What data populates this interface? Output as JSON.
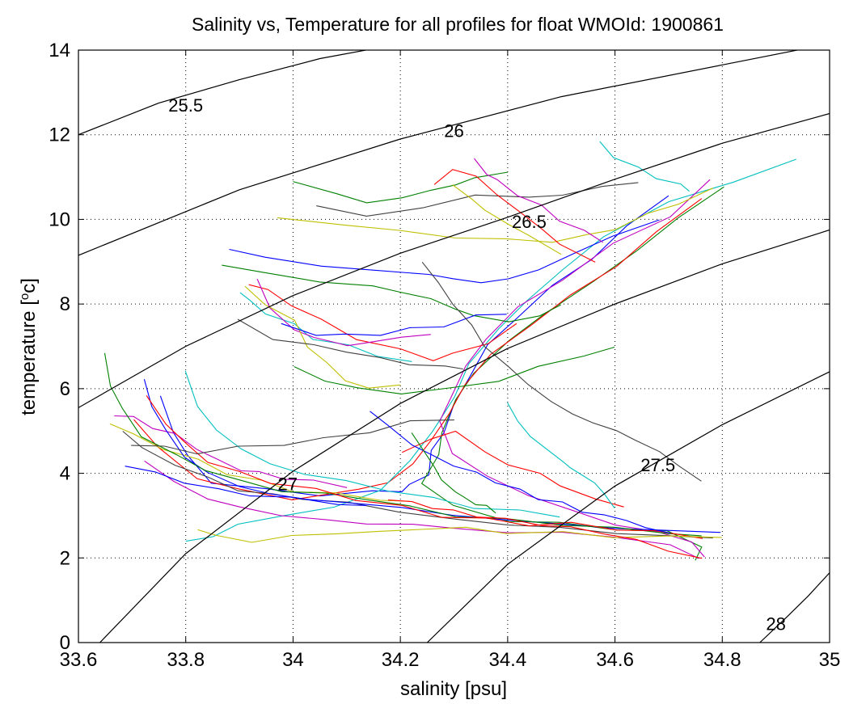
{
  "chart_data": {
    "type": "line",
    "title": "Salinity vs, Temperature for all profiles for float WMOId: 1900861",
    "xlabel": "salinity [psu]",
    "ylabel": "temperature [",
    "ylabel_sup": "o",
    "ylabel_end": "c]",
    "xlim": [
      33.6,
      35.0
    ],
    "ylim": [
      0,
      14
    ],
    "x_ticks": [
      33.6,
      33.8,
      34.0,
      34.2,
      34.4,
      34.6,
      34.8,
      35.0
    ],
    "x_tick_labels": [
      "33.6",
      "33.8",
      "34",
      "34.2",
      "34.4",
      "34.6",
      "34.8",
      "35"
    ],
    "y_ticks": [
      0,
      2,
      4,
      6,
      8,
      10,
      12,
      14
    ],
    "y_tick_labels": [
      "0",
      "2",
      "4",
      "6",
      "8",
      "10",
      "12",
      "14"
    ],
    "grid": "dotted",
    "series_colors": [
      "#0000ff",
      "#008000",
      "#ff0000",
      "#00bfbf",
      "#bf00bf",
      "#bfbf00",
      "#404040"
    ],
    "isopycnals": [
      {
        "label": "25.5",
        "x": [
          33.6,
          33.75,
          33.9,
          34.05,
          34.2
        ],
        "y": [
          12.0,
          12.75,
          13.3,
          13.8,
          14.15
        ],
        "label_x": 33.8,
        "label_y": 12.7
      },
      {
        "label": "26",
        "x": [
          33.6,
          33.9,
          34.2,
          34.5,
          34.8,
          35.0
        ],
        "y": [
          9.15,
          10.7,
          11.9,
          12.9,
          13.65,
          14.15
        ],
        "label_x": 34.3,
        "label_y": 12.1
      },
      {
        "label": "26.5",
        "x": [
          33.6,
          33.8,
          34.0,
          34.2,
          34.4,
          34.6,
          34.8,
          35.0
        ],
        "y": [
          5.55,
          7.0,
          8.2,
          9.2,
          10.05,
          10.95,
          11.8,
          12.5
        ],
        "label_x": 34.44,
        "label_y": 9.95
      },
      {
        "label": "27",
        "x": [
          33.64,
          33.8,
          34.0,
          34.2,
          34.4,
          34.6,
          34.8,
          35.0
        ],
        "y": [
          0,
          2.1,
          4.05,
          5.65,
          6.95,
          8.0,
          8.95,
          9.75
        ],
        "label_x": 33.99,
        "label_y": 3.75
      },
      {
        "label": "27.5",
        "x": [
          34.25,
          34.4,
          34.6,
          34.8,
          35.0
        ],
        "y": [
          0,
          1.85,
          3.7,
          5.15,
          6.4
        ],
        "label_x": 34.68,
        "label_y": 4.2
      },
      {
        "label": "28",
        "x": [
          34.87,
          34.92,
          34.96,
          35.0
        ],
        "y": [
          0,
          0.6,
          1.1,
          1.65
        ],
        "label_x": 34.9,
        "label_y": 0.45
      }
    ],
    "profiles": [
      {
        "s": [
          34.7,
          34.62,
          34.56,
          34.48,
          34.42,
          34.36,
          34.33,
          34.3,
          34.28,
          34.26,
          34.25,
          34.22,
          34.2,
          34.15,
          34.05,
          33.95,
          33.85,
          33.8,
          33.78,
          33.75
        ],
        "t": [
          10.6,
          9.8,
          9.1,
          8.4,
          7.7,
          7.0,
          6.3,
          5.6,
          5.0,
          4.5,
          4.0,
          3.7,
          3.6,
          3.55,
          3.5,
          3.6,
          3.8,
          4.4,
          5.0,
          5.8
        ]
      },
      {
        "s": [
          34.8,
          34.72,
          34.64,
          34.56,
          34.47,
          34.4,
          34.34,
          34.3,
          34.28,
          34.27,
          34.24,
          34.3,
          34.4,
          34.5,
          34.6,
          34.7,
          34.76,
          34.75
        ],
        "t": [
          10.8,
          10.0,
          9.3,
          8.5,
          7.8,
          7.1,
          6.4,
          5.7,
          5.0,
          4.4,
          3.8,
          3.2,
          2.9,
          2.8,
          2.7,
          2.6,
          2.3,
          1.9
        ]
      },
      {
        "s": [
          34.76,
          34.68,
          34.6,
          34.52,
          34.44,
          34.37,
          34.32,
          34.29,
          34.26,
          34.22,
          34.18,
          34.12,
          34.0,
          33.9,
          33.82,
          33.75,
          33.7
        ],
        "t": [
          10.5,
          9.7,
          8.9,
          8.2,
          7.5,
          6.8,
          6.1,
          5.4,
          4.8,
          4.2,
          3.8,
          3.6,
          3.4,
          3.6,
          3.9,
          4.6,
          5.3
        ]
      },
      {
        "s": [
          34.94,
          34.82,
          34.7,
          34.58,
          34.5,
          34.44,
          34.38,
          34.33,
          34.3,
          34.26,
          34.22,
          34.16,
          34.08,
          33.98,
          33.9,
          33.85,
          33.8
        ],
        "t": [
          11.4,
          10.9,
          10.4,
          9.6,
          8.8,
          8.1,
          7.4,
          6.6,
          5.8,
          5.0,
          4.3,
          3.6,
          3.2,
          3.0,
          2.8,
          2.5,
          2.4
        ]
      },
      {
        "s": [
          34.78,
          34.7,
          34.6,
          34.5,
          34.42,
          34.36,
          34.32,
          34.3,
          34.27,
          34.3,
          34.36,
          34.44,
          34.52,
          34.6,
          34.68,
          34.74,
          34.77
        ],
        "t": [
          10.9,
          10.1,
          9.4,
          8.6,
          7.9,
          7.2,
          6.5,
          5.9,
          5.2,
          4.5,
          3.9,
          3.5,
          3.1,
          2.8,
          2.6,
          2.4,
          2.0
        ]
      },
      {
        "s": [
          33.97,
          34.1,
          34.2,
          34.3,
          34.4,
          34.48,
          34.55,
          34.6,
          34.66,
          34.72,
          34.78
        ],
        "t": [
          10.0,
          9.9,
          9.7,
          9.6,
          9.5,
          9.5,
          9.6,
          9.8,
          10.1,
          10.4,
          10.7
        ]
      },
      {
        "s": [
          34.04,
          34.14,
          34.24,
          34.34,
          34.44,
          34.5,
          34.58,
          34.64
        ],
        "t": [
          10.3,
          10.1,
          10.25,
          10.6,
          10.5,
          10.6,
          10.75,
          10.9
        ]
      },
      {
        "s": [
          33.88,
          33.95,
          34.05,
          34.15,
          34.25,
          34.3,
          34.35,
          34.4,
          34.46,
          34.52,
          34.6,
          34.68
        ],
        "t": [
          9.3,
          9.1,
          8.9,
          8.8,
          8.7,
          8.6,
          8.5,
          8.6,
          8.8,
          9.2,
          9.6,
          10.0
        ]
      },
      {
        "s": [
          33.87,
          33.95,
          34.05,
          34.15,
          34.2,
          34.26,
          34.3,
          34.34,
          34.4,
          34.46,
          34.5
        ],
        "t": [
          8.95,
          8.7,
          8.55,
          8.4,
          8.3,
          8.1,
          7.9,
          7.7,
          7.6,
          7.7,
          8.0
        ]
      },
      {
        "s": [
          33.92,
          33.95,
          34.0,
          34.05,
          34.12,
          34.2,
          34.26,
          34.3,
          34.36,
          34.42
        ],
        "t": [
          8.5,
          8.3,
          8.0,
          7.6,
          7.2,
          6.9,
          6.7,
          6.8,
          7.1,
          7.5
        ]
      },
      {
        "s": [
          33.9,
          33.92,
          33.95,
          34.0,
          34.04,
          34.1,
          34.16,
          34.22
        ],
        "t": [
          8.3,
          8.05,
          7.8,
          7.5,
          7.2,
          7.0,
          6.8,
          6.6
        ]
      },
      {
        "s": [
          33.93,
          33.96,
          34.0,
          34.04,
          34.08,
          34.1,
          34.14,
          34.2,
          34.26
        ],
        "t": [
          8.6,
          7.9,
          7.4,
          7.2,
          7.1,
          7.0,
          7.1,
          7.2,
          7.3
        ]
      },
      {
        "s": [
          33.91,
          33.95,
          34.0,
          34.03,
          34.06,
          34.1,
          34.14,
          34.2
        ],
        "t": [
          8.4,
          8.0,
          7.6,
          7.0,
          6.6,
          6.2,
          6.0,
          6.1
        ]
      },
      {
        "s": [
          33.9,
          33.96,
          34.04,
          34.1,
          34.16,
          34.22,
          34.28,
          34.32
        ],
        "t": [
          7.6,
          7.2,
          7.0,
          6.9,
          6.7,
          6.6,
          6.5,
          6.5
        ]
      },
      {
        "s": [
          33.98,
          34.04,
          34.1,
          34.16,
          34.22,
          34.28,
          34.34,
          34.4
        ],
        "t": [
          7.5,
          7.3,
          7.25,
          7.3,
          7.4,
          7.5,
          7.7,
          7.8
        ]
      },
      {
        "s": [
          34.0,
          34.06,
          34.12,
          34.2,
          34.3,
          34.38,
          34.46,
          34.54,
          34.6
        ],
        "t": [
          6.5,
          6.2,
          6.0,
          5.9,
          6.0,
          6.2,
          6.5,
          6.8,
          6.95
        ]
      },
      {
        "s": [
          34.2,
          34.26,
          34.3,
          34.36,
          34.4,
          34.46,
          34.5,
          34.56,
          34.62
        ],
        "t": [
          4.5,
          4.8,
          5.0,
          4.5,
          4.2,
          4.0,
          3.7,
          3.4,
          3.2
        ]
      },
      {
        "s": [
          34.4,
          34.42,
          34.44,
          34.48,
          34.5,
          34.52,
          34.56,
          34.58,
          34.6
        ],
        "t": [
          5.7,
          5.2,
          4.9,
          4.5,
          4.3,
          4.1,
          3.8,
          3.5,
          3.2
        ]
      },
      {
        "s": [
          33.67,
          33.7,
          33.74,
          33.78,
          33.82,
          33.86,
          33.9,
          33.94,
          33.98,
          34.04,
          34.1
        ],
        "t": [
          5.4,
          5.3,
          5.1,
          4.9,
          4.6,
          4.3,
          4.1,
          4.0,
          3.9,
          3.8,
          3.7
        ]
      },
      {
        "s": [
          33.66,
          33.7,
          33.76,
          33.82,
          33.88,
          33.94,
          34.0,
          34.08,
          34.16,
          34.22
        ],
        "t": [
          5.2,
          4.9,
          4.6,
          4.3,
          4.0,
          3.8,
          3.6,
          3.5,
          3.4,
          3.3
        ]
      },
      {
        "s": [
          33.68,
          33.72,
          33.78,
          33.84,
          33.9,
          33.96,
          34.02,
          34.1,
          34.2,
          34.3,
          34.4,
          34.5,
          34.6,
          34.7,
          34.78
        ],
        "t": [
          5.0,
          4.6,
          4.2,
          3.9,
          3.6,
          3.5,
          3.4,
          3.3,
          3.1,
          2.9,
          2.8,
          2.7,
          2.6,
          2.5,
          2.5
        ]
      },
      {
        "s": [
          33.72,
          33.74,
          33.76,
          33.8,
          33.84,
          33.9,
          33.96,
          34.02,
          34.1,
          34.2,
          34.3,
          34.4,
          34.5,
          34.6,
          34.7,
          34.8
        ],
        "t": [
          6.2,
          5.6,
          5.0,
          4.4,
          4.0,
          3.7,
          3.5,
          3.4,
          3.3,
          3.2,
          3.0,
          2.9,
          2.8,
          2.7,
          2.65,
          2.6
        ]
      },
      {
        "s": [
          33.65,
          33.66,
          33.68,
          33.72,
          33.78,
          33.84,
          33.9,
          33.98,
          34.06,
          34.14,
          34.22,
          34.3,
          34.4,
          34.5,
          34.6,
          34.7,
          34.76
        ],
        "t": [
          6.8,
          6.1,
          5.5,
          4.9,
          4.4,
          4.1,
          3.8,
          3.6,
          3.5,
          3.4,
          3.2,
          3.0,
          2.9,
          2.8,
          2.7,
          2.6,
          2.5
        ]
      },
      {
        "s": [
          33.73,
          33.76,
          33.8,
          33.84,
          33.9,
          33.96,
          34.04,
          34.12,
          34.2,
          34.28,
          34.36,
          34.44,
          34.52,
          34.6,
          34.68,
          34.76
        ],
        "t": [
          5.8,
          5.2,
          4.7,
          4.3,
          4.0,
          3.8,
          3.6,
          3.4,
          3.2,
          3.0,
          2.9,
          2.8,
          2.8,
          2.7,
          2.6,
          2.5
        ]
      },
      {
        "s": [
          33.8,
          33.82,
          33.86,
          33.9,
          33.96,
          34.02,
          34.1,
          34.18,
          34.26,
          34.34,
          34.42,
          34.5
        ],
        "t": [
          6.4,
          5.6,
          5.0,
          4.6,
          4.2,
          4.0,
          3.8,
          3.6,
          3.4,
          3.2,
          3.1,
          3.0
        ]
      },
      {
        "s": [
          33.72,
          33.78,
          33.84,
          33.9,
          33.98,
          34.06,
          34.14,
          34.22,
          34.3,
          34.4,
          34.5,
          34.6,
          34.7,
          34.76
        ],
        "t": [
          4.3,
          3.8,
          3.4,
          3.2,
          3.0,
          2.9,
          2.8,
          2.8,
          2.7,
          2.6,
          2.6,
          2.5,
          2.3,
          2.0
        ]
      },
      {
        "s": [
          33.82,
          33.86,
          33.92,
          34.0,
          34.08,
          34.16,
          34.24,
          34.32,
          34.4,
          34.5,
          34.6,
          34.7,
          34.8
        ],
        "t": [
          2.7,
          2.5,
          2.4,
          2.5,
          2.6,
          2.6,
          2.7,
          2.7,
          2.6,
          2.6,
          2.5,
          2.5,
          2.5
        ]
      },
      {
        "s": [
          33.7,
          33.76,
          33.82,
          33.9,
          33.98,
          34.06,
          34.14,
          34.22,
          34.3
        ],
        "t": [
          4.7,
          4.6,
          4.5,
          4.6,
          4.7,
          4.8,
          5.0,
          5.2,
          5.3
        ]
      },
      {
        "s": [
          33.69,
          33.74,
          33.8,
          33.86,
          33.92,
          34.0,
          34.08,
          34.14
        ],
        "t": [
          4.2,
          4.0,
          3.8,
          3.6,
          3.5,
          3.4,
          3.3,
          3.2
        ]
      },
      {
        "s": [
          34.0,
          34.08,
          34.14,
          34.2,
          34.26,
          34.3,
          34.34,
          34.4
        ],
        "t": [
          10.9,
          10.6,
          10.4,
          10.5,
          10.7,
          10.8,
          11.0,
          11.1
        ]
      },
      {
        "s": [
          34.26,
          34.3,
          34.34,
          34.38,
          34.42,
          34.46,
          34.5,
          34.56
        ],
        "t": [
          10.8,
          11.2,
          11.0,
          10.6,
          10.2,
          9.8,
          9.4,
          9.0
        ]
      },
      {
        "s": [
          34.57,
          34.6,
          34.64,
          34.68,
          34.72,
          34.74
        ],
        "t": [
          11.8,
          11.5,
          11.2,
          11.0,
          10.8,
          10.7
        ]
      },
      {
        "s": [
          34.34,
          34.36,
          34.38,
          34.42,
          34.46,
          34.5,
          34.54,
          34.58
        ],
        "t": [
          11.4,
          11.1,
          10.9,
          10.6,
          10.3,
          10.0,
          9.7,
          9.5
        ]
      },
      {
        "s": [
          34.3,
          34.33,
          34.36,
          34.4,
          34.44,
          34.5
        ],
        "t": [
          10.8,
          10.5,
          10.2,
          9.9,
          9.6,
          9.2
        ]
      },
      {
        "s": [
          34.24,
          34.27,
          34.3,
          34.33,
          34.36,
          34.4,
          34.44,
          34.48,
          34.52,
          34.56,
          34.6,
          34.64,
          34.68,
          34.72,
          34.76
        ],
        "t": [
          9.0,
          8.5,
          8.0,
          7.5,
          7.0,
          6.5,
          6.1,
          5.7,
          5.4,
          5.2,
          5.0,
          4.8,
          4.5,
          4.2,
          3.8
        ]
      },
      {
        "s": [
          34.14,
          34.18,
          34.22,
          34.26,
          34.3,
          34.34,
          34.38,
          34.42,
          34.46,
          34.5,
          34.54,
          34.58,
          34.62,
          34.66,
          34.7
        ],
        "t": [
          5.5,
          5.1,
          4.7,
          4.4,
          4.2,
          4.0,
          3.8,
          3.6,
          3.4,
          3.3,
          3.1,
          3.0,
          2.9,
          2.7,
          2.6
        ]
      },
      {
        "s": [
          34.22,
          34.24,
          34.26,
          34.28,
          34.3,
          34.32,
          34.34,
          34.36,
          34.38
        ],
        "t": [
          5.0,
          4.6,
          4.2,
          3.8,
          3.6,
          3.4,
          3.3,
          3.2,
          3.1
        ]
      },
      {
        "s": [
          34.18,
          34.22,
          34.26,
          34.3,
          34.34,
          34.4,
          34.46,
          34.52,
          34.58,
          34.64,
          34.7,
          34.76
        ],
        "t": [
          3.4,
          3.3,
          3.2,
          3.1,
          3.0,
          2.9,
          2.8,
          2.7,
          2.6,
          2.4,
          2.2,
          1.95
        ]
      }
    ]
  }
}
